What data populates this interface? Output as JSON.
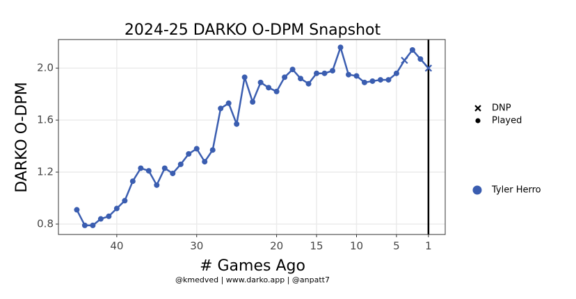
{
  "chart_data": {
    "type": "line",
    "title": "2024-25 DARKO O-DPM Snapshot",
    "xlabel": "# Games Ago",
    "ylabel": "DARKO O-DPM",
    "caption": "@kmedved | www.darko.app | @anpatt7",
    "x": [
      45,
      44,
      43,
      42,
      41,
      40,
      39,
      38,
      37,
      36,
      35,
      34,
      33,
      32,
      31,
      30,
      29,
      28,
      27,
      26,
      25,
      24,
      23,
      22,
      21,
      20,
      19,
      18,
      17,
      16,
      15,
      14,
      13,
      12,
      11,
      10,
      9,
      8,
      7,
      6,
      5,
      4,
      3,
      2,
      1
    ],
    "series": [
      {
        "name": "Tyler Herro",
        "color": "#3a5db0",
        "values": [
          0.91,
          0.79,
          0.79,
          0.84,
          0.86,
          0.92,
          0.98,
          1.13,
          1.23,
          1.21,
          1.1,
          1.23,
          1.19,
          1.26,
          1.34,
          1.38,
          1.28,
          1.37,
          1.69,
          1.73,
          1.57,
          1.93,
          1.74,
          1.89,
          1.85,
          1.82,
          1.93,
          1.99,
          1.92,
          1.88,
          1.96,
          1.96,
          1.98,
          2.16,
          1.95,
          1.94,
          1.89,
          1.9,
          1.91,
          1.91,
          1.96,
          2.06,
          2.14,
          2.07,
          2.0
        ],
        "shapes": [
          "circle",
          "circle",
          "circle",
          "circle",
          "circle",
          "circle",
          "circle",
          "circle",
          "circle",
          "circle",
          "circle",
          "circle",
          "circle",
          "circle",
          "circle",
          "circle",
          "circle",
          "circle",
          "circle",
          "circle",
          "circle",
          "circle",
          "circle",
          "circle",
          "circle",
          "circle",
          "circle",
          "circle",
          "circle",
          "circle",
          "circle",
          "circle",
          "circle",
          "circle",
          "circle",
          "circle",
          "circle",
          "circle",
          "circle",
          "circle",
          "circle",
          "cross",
          "circle",
          "circle",
          "cross"
        ]
      }
    ],
    "shape_legend": [
      {
        "label": "DNP",
        "shape": "cross"
      },
      {
        "label": "Played",
        "shape": "circle"
      }
    ],
    "vline": 1,
    "xlim": [
      47.3,
      -1.1
    ],
    "xticks": [
      40,
      30,
      20,
      15,
      10,
      5,
      1
    ],
    "ylim": [
      0.72,
      2.22
    ],
    "yticks": [
      {
        "value": 0.8,
        "label": "0.8"
      },
      {
        "value": 1.2,
        "label": "1.2"
      },
      {
        "value": 1.6,
        "label": "1.6"
      },
      {
        "value": 2.0,
        "label": "2.0"
      }
    ],
    "grid": true
  }
}
